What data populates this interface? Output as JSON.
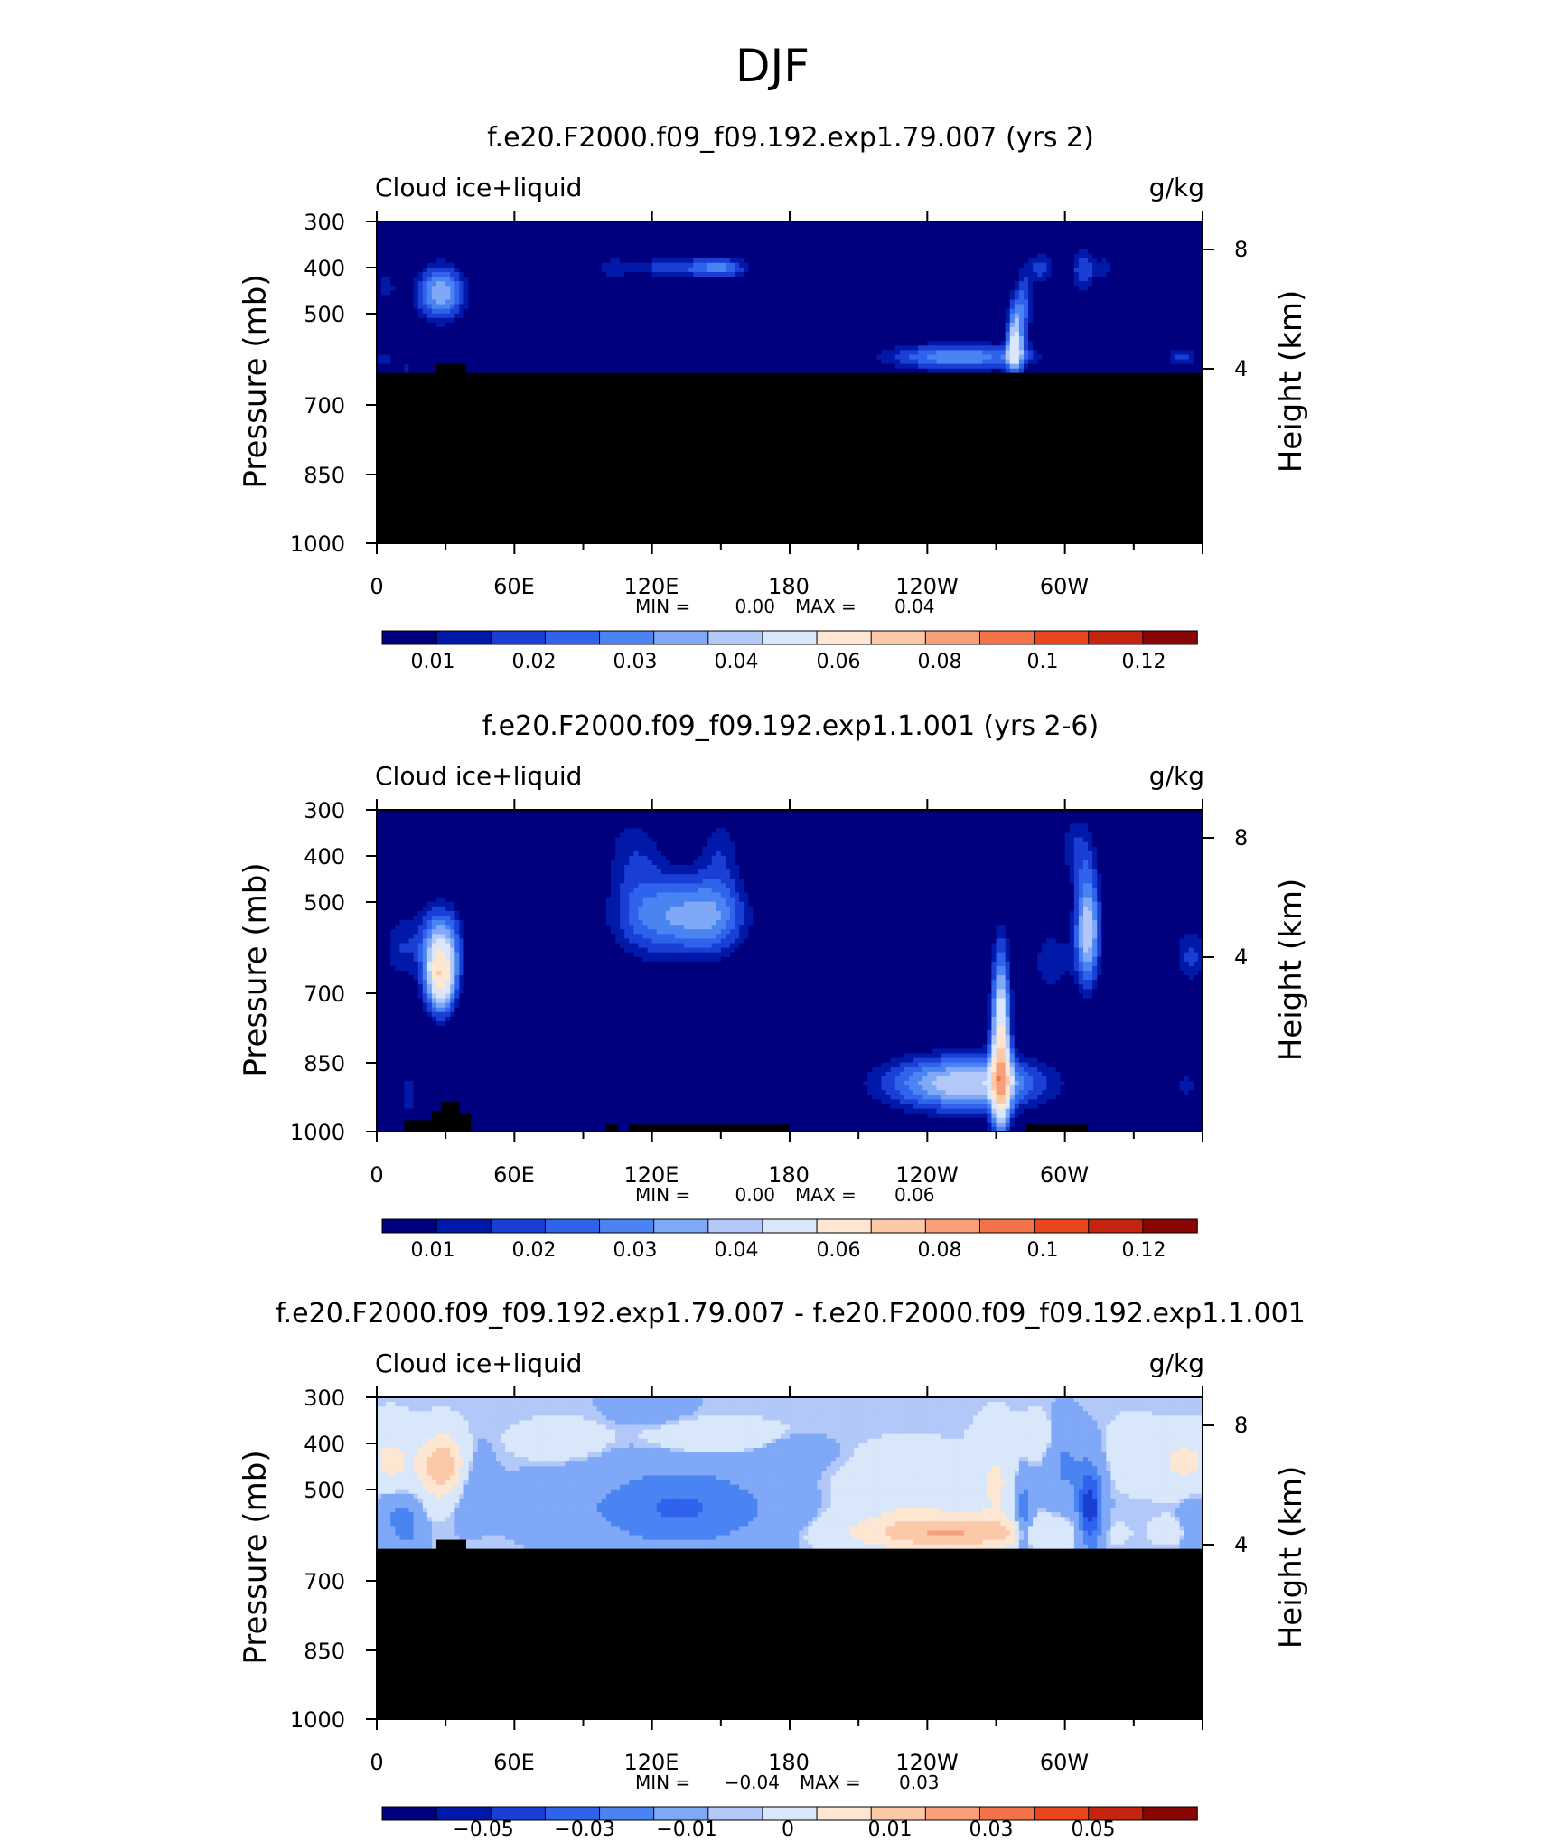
{
  "main_title": "DJF",
  "colors": {
    "positive_scale": [
      "#00007f",
      "#0019a8",
      "#1a3fd4",
      "#2f63ec",
      "#4a84f2",
      "#7fa8f7",
      "#b2c8f8",
      "#d9e7fb",
      "#fde6d2",
      "#fbc8a8",
      "#f8a07a",
      "#f27348",
      "#e9461f",
      "#c5250f",
      "#8a0606"
    ],
    "diff_scale": [
      "#00007f",
      "#0019a8",
      "#1a3fd4",
      "#2f63ec",
      "#4a84f2",
      "#7fa8f7",
      "#b2c8f8",
      "#d9e7fb",
      "#fde6d2",
      "#fbc8a8",
      "#f8a07a",
      "#f27348",
      "#e9461f",
      "#c5250f",
      "#8a0606"
    ],
    "missing": "#000000"
  },
  "chart_data": [
    {
      "type": "heatmap",
      "title": "f.e20.F2000.f09_f09.192.exp1.79.007 (yrs 2)",
      "left_label": "Cloud ice+liquid",
      "right_label": "g/kg",
      "ylabel": "Pressure (mb)",
      "y2label": "Height (km)",
      "x_ticks": [
        "0",
        "60E",
        "120E",
        "180",
        "120W",
        "60W"
      ],
      "y_ticks": [
        "300",
        "400",
        "500",
        "700",
        "850",
        "1000"
      ],
      "y2_ticks": [
        "8",
        "4"
      ],
      "stats": {
        "min_label": "MIN =",
        "min": "0.00",
        "max_label": "MAX =",
        "max": "0.04"
      },
      "colorbar_labels": [
        "0.01",
        "0.02",
        "0.03",
        "0.04",
        "0.06",
        "0.08",
        "0.1",
        "0.12"
      ],
      "ylim": [
        1000,
        300
      ],
      "xlim": [
        0,
        360
      ],
      "ground_level_mb": 630,
      "ground_blocks": [
        {
          "lon0": 26,
          "lon1": 39,
          "top_mb": 610
        }
      ],
      "blobs": [
        {
          "lon": 28,
          "p": 455,
          "dlon": 8,
          "dp": 45,
          "amp": 0.035
        },
        {
          "lon": 4,
          "p": 440,
          "dlon": 4,
          "dp": 30,
          "amp": 0.012
        },
        {
          "lon": 3,
          "p": 600,
          "dlon": 4,
          "dp": 18,
          "amp": 0.012
        },
        {
          "lon": 13,
          "p": 620,
          "dlon": 2,
          "dp": 15,
          "amp": 0.012
        },
        {
          "lon": 104,
          "p": 400,
          "dlon": 8,
          "dp": 18,
          "amp": 0.015
        },
        {
          "lon": 140,
          "p": 400,
          "dlon": 10,
          "dp": 18,
          "amp": 0.018
        },
        {
          "lon": 153,
          "p": 400,
          "dlon": 8,
          "dp": 16,
          "amp": 0.017
        },
        {
          "lon": 124,
          "p": 400,
          "dlon": 6,
          "dp": 15,
          "amp": 0.013
        },
        {
          "lon": 254,
          "p": 595,
          "dlon": 24,
          "dp": 22,
          "amp": 0.03
        },
        {
          "lon": 278,
          "p": 560,
          "dlon": 2.5,
          "dp": 55,
          "amp": 0.038
        },
        {
          "lon": 282,
          "p": 480,
          "dlon": 3,
          "dp": 60,
          "amp": 0.02
        },
        {
          "lon": 290,
          "p": 400,
          "dlon": 4,
          "dp": 25,
          "amp": 0.018
        },
        {
          "lon": 308,
          "p": 405,
          "dlon": 4,
          "dp": 40,
          "amp": 0.02
        },
        {
          "lon": 318,
          "p": 400,
          "dlon": 3,
          "dp": 25,
          "amp": 0.012
        },
        {
          "lon": 351,
          "p": 595,
          "dlon": 6,
          "dp": 15,
          "amp": 0.016
        }
      ]
    },
    {
      "type": "heatmap",
      "title": "f.e20.F2000.f09_f09.192.exp1.1.001 (yrs 2-6)",
      "left_label": "Cloud ice+liquid",
      "right_label": "g/kg",
      "ylabel": "Pressure (mb)",
      "y2label": "Height (km)",
      "x_ticks": [
        "0",
        "60E",
        "120E",
        "180",
        "120W",
        "60W"
      ],
      "y_ticks": [
        "300",
        "400",
        "500",
        "700",
        "850",
        "1000"
      ],
      "y2_ticks": [
        "8",
        "4"
      ],
      "stats": {
        "min_label": "MIN =",
        "min": "0.00",
        "max_label": "MAX =",
        "max": "0.06"
      },
      "colorbar_labels": [
        "0.01",
        "0.02",
        "0.03",
        "0.04",
        "0.06",
        "0.08",
        "0.1",
        "0.12"
      ],
      "ylim": [
        1000,
        300
      ],
      "xlim": [
        0,
        360
      ],
      "ground_level_mb": 1000,
      "ground_blocks": [
        {
          "lon0": 12,
          "lon1": 24,
          "top_mb": 975
        },
        {
          "lon0": 24,
          "lon1": 28,
          "top_mb": 955
        },
        {
          "lon0": 28,
          "lon1": 36,
          "top_mb": 935
        },
        {
          "lon0": 36,
          "lon1": 41,
          "top_mb": 960
        },
        {
          "lon0": 100,
          "lon1": 105,
          "top_mb": 985
        },
        {
          "lon0": 110,
          "lon1": 180,
          "top_mb": 985
        },
        {
          "lon0": 283,
          "lon1": 310,
          "top_mb": 985
        }
      ],
      "blobs": [
        {
          "lon": 28,
          "p": 670,
          "dlon": 5,
          "dp": 55,
          "amp": 0.05
        },
        {
          "lon": 28,
          "p": 580,
          "dlon": 7,
          "dp": 60,
          "amp": 0.028
        },
        {
          "lon": 10,
          "p": 600,
          "dlon": 6,
          "dp": 60,
          "amp": 0.014
        },
        {
          "lon": 14,
          "p": 920,
          "dlon": 3,
          "dp": 40,
          "amp": 0.014
        },
        {
          "lon": 120,
          "p": 530,
          "dlon": 14,
          "dp": 70,
          "amp": 0.025
        },
        {
          "lon": 146,
          "p": 530,
          "dlon": 12,
          "dp": 65,
          "amp": 0.028
        },
        {
          "lon": 112,
          "p": 380,
          "dlon": 10,
          "dp": 65,
          "amp": 0.012
        },
        {
          "lon": 150,
          "p": 380,
          "dlon": 7,
          "dp": 55,
          "amp": 0.012
        },
        {
          "lon": 256,
          "p": 895,
          "dlon": 26,
          "dp": 45,
          "amp": 0.04
        },
        {
          "lon": 272,
          "p": 820,
          "dlon": 3,
          "dp": 150,
          "amp": 0.055
        },
        {
          "lon": 294,
          "p": 630,
          "dlon": 7,
          "dp": 60,
          "amp": 0.014
        },
        {
          "lon": 310,
          "p": 560,
          "dlon": 4,
          "dp": 90,
          "amp": 0.04
        },
        {
          "lon": 305,
          "p": 380,
          "dlon": 6,
          "dp": 60,
          "amp": 0.014
        },
        {
          "lon": 355,
          "p": 620,
          "dlon": 6,
          "dp": 50,
          "amp": 0.016
        },
        {
          "lon": 353,
          "p": 900,
          "dlon": 5,
          "dp": 20,
          "amp": 0.014
        }
      ]
    },
    {
      "type": "heatmap",
      "title": "f.e20.F2000.f09_f09.192.exp1.79.007 - f.e20.F2000.f09_f09.192.exp1.1.001",
      "left_label": "Cloud ice+liquid",
      "right_label": "g/kg",
      "ylabel": "Pressure (mb)",
      "y2label": "Height (km)",
      "x_ticks": [
        "0",
        "60E",
        "120E",
        "180",
        "120W",
        "60W"
      ],
      "y_ticks": [
        "300",
        "400",
        "500",
        "700",
        "850",
        "1000"
      ],
      "y2_ticks": [
        "8",
        "4"
      ],
      "stats": {
        "min_label": "MIN =",
        "min": "−0.04",
        "max_label": "MAX =",
        "max": "0.03"
      },
      "colorbar_labels": [
        "−0.05",
        "−0.03",
        "−0.01",
        "0",
        "0.01",
        "0.03",
        "0.05"
      ],
      "ylim": [
        1000,
        300
      ],
      "xlim": [
        0,
        360
      ],
      "ground_level_mb": 630,
      "ground_blocks": [
        {
          "lon0": 26,
          "lon1": 39,
          "top_mb": 610
        }
      ],
      "blobs": [
        {
          "lon": 29,
          "p": 450,
          "dlon": 7,
          "dp": 45,
          "amp": 0.03
        },
        {
          "lon": 6,
          "p": 440,
          "dlon": 7,
          "dp": 50,
          "amp": 0.012
        },
        {
          "lon": 6,
          "p": 560,
          "dlon": 5,
          "dp": 40,
          "amp": -0.01
        },
        {
          "lon": 14,
          "p": 580,
          "dlon": 4,
          "dp": 45,
          "amp": -0.012
        },
        {
          "lon": 40,
          "p": 480,
          "dlon": 6,
          "dp": 55,
          "amp": -0.008
        },
        {
          "lon": 70,
          "p": 530,
          "dlon": 12,
          "dp": 30,
          "amp": -0.008
        },
        {
          "lon": 132,
          "p": 540,
          "dlon": 28,
          "dp": 60,
          "amp": -0.022
        },
        {
          "lon": 118,
          "p": 310,
          "dlon": 10,
          "dp": 25,
          "amp": -0.008
        },
        {
          "lon": 150,
          "p": 390,
          "dlon": 18,
          "dp": 22,
          "amp": 0.008
        },
        {
          "lon": 80,
          "p": 395,
          "dlon": 12,
          "dp": 25,
          "amp": 0.006
        },
        {
          "lon": 180,
          "p": 420,
          "dlon": 12,
          "dp": 25,
          "amp": -0.006
        },
        {
          "lon": 250,
          "p": 595,
          "dlon": 28,
          "dp": 25,
          "amp": 0.028
        },
        {
          "lon": 232,
          "p": 520,
          "dlon": 20,
          "dp": 60,
          "amp": 0.008
        },
        {
          "lon": 270,
          "p": 480,
          "dlon": 6,
          "dp": 70,
          "amp": 0.01
        },
        {
          "lon": 282,
          "p": 560,
          "dlon": 3,
          "dp": 60,
          "amp": -0.02
        },
        {
          "lon": 300,
          "p": 450,
          "dlon": 6,
          "dp": 60,
          "amp": -0.012
        },
        {
          "lon": 311,
          "p": 540,
          "dlon": 3.5,
          "dp": 60,
          "amp": -0.038
        },
        {
          "lon": 288,
          "p": 390,
          "dlon": 4,
          "dp": 30,
          "amp": 0.01
        },
        {
          "lon": 330,
          "p": 420,
          "dlon": 6,
          "dp": 40,
          "amp": 0.008
        },
        {
          "lon": 352,
          "p": 440,
          "dlon": 9,
          "dp": 40,
          "amp": 0.012
        },
        {
          "lon": 346,
          "p": 590,
          "dlon": 4,
          "dp": 15,
          "amp": 0.009
        },
        {
          "lon": 356,
          "p": 580,
          "dlon": 4,
          "dp": 40,
          "amp": -0.008
        }
      ]
    }
  ]
}
